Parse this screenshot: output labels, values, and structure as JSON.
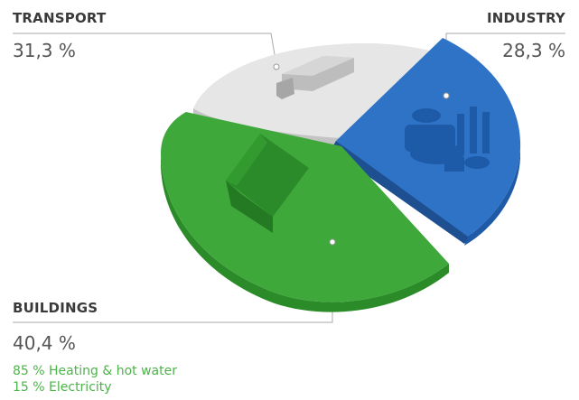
{
  "chart_data": {
    "type": "pie",
    "slices": [
      {
        "label": "TRANSPORT",
        "value_text": "31,3 %",
        "value": 31.3,
        "color": "#e6e6e6",
        "icon": "truck-icon"
      },
      {
        "label": "INDUSTRY",
        "value_text": "28,3 %",
        "value": 28.3,
        "color": "#2f73c7",
        "icon": "factory-icon"
      },
      {
        "label": "BUILDINGS",
        "value_text": "40,4 %",
        "value": 40.4,
        "color": "#3ea83a",
        "icon": "house-icon"
      }
    ],
    "breakdown": [
      {
        "text": "85 % Heating & hot water",
        "value": 85
      },
      {
        "text": "15 % Electricity",
        "value": 15
      }
    ],
    "accent_color": "#4db34a"
  }
}
